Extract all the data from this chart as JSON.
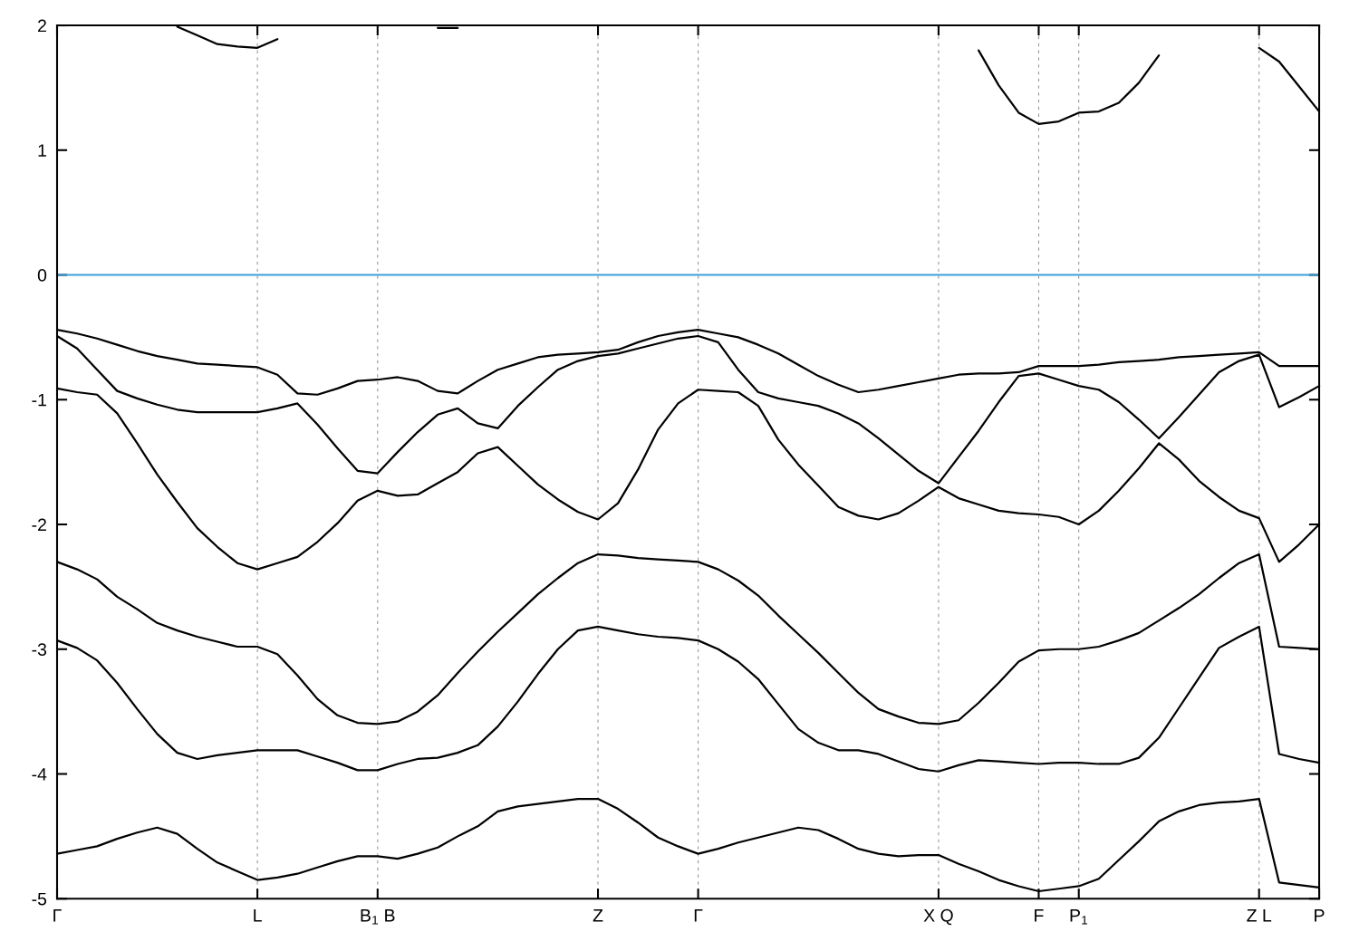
{
  "chart_data": {
    "type": "line",
    "categories": [
      "Γ",
      null,
      null,
      null,
      null,
      null,
      null,
      null,
      null,
      null,
      "L",
      null,
      null,
      null,
      null,
      null,
      "B$_{1}$ B",
      null,
      null,
      null,
      null,
      null,
      null,
      null,
      null,
      null,
      null,
      "Z",
      null,
      null,
      null,
      null,
      "Γ",
      null,
      null,
      null,
      null,
      null,
      null,
      null,
      null,
      null,
      null,
      null,
      "X Q",
      null,
      null,
      null,
      null,
      "F",
      null,
      "P$_{1}$",
      null,
      null,
      null,
      null,
      null,
      null,
      null,
      null,
      "Z L",
      null,
      null,
      "P"
    ],
    "ylim": [
      -5,
      2
    ],
    "yticks": [
      -5,
      -4,
      -3,
      -2,
      -1,
      0,
      1,
      2
    ],
    "grid": "x",
    "marker": "none",
    "line_style": "solid",
    "ref_lines": [
      {
        "axis": "y",
        "value": 0,
        "color": "#3d9fd8",
        "line_style": "solid"
      }
    ],
    "series": [
      {
        "color": "#000000",
        "values": [
          -4.64,
          -4.61,
          -4.58,
          -4.52,
          -4.47,
          -4.43,
          -4.48,
          -4.6,
          -4.71,
          -4.78,
          -4.85,
          -4.83,
          -4.8,
          -4.75,
          -4.7,
          -4.66,
          -4.66,
          -4.68,
          -4.64,
          -4.59,
          -4.5,
          -4.42,
          -4.3,
          -4.26,
          -4.24,
          -4.22,
          -4.2,
          -4.2,
          -4.28,
          -4.39,
          -4.51,
          -4.58,
          -4.64,
          -4.6,
          -4.55,
          -4.51,
          -4.47,
          -4.43,
          -4.45,
          -4.52,
          -4.6,
          -4.64,
          -4.66,
          -4.65,
          -4.65,
          -4.72,
          -4.78,
          -4.85,
          -4.9,
          -4.94,
          -4.92,
          -4.9,
          -4.84,
          -4.69,
          -4.54,
          -4.38,
          -4.3,
          -4.25,
          -4.23,
          -4.22,
          -4.2,
          -4.87,
          -4.89,
          -4.91
        ]
      },
      {
        "color": "#000000",
        "values": [
          -2.93,
          -2.99,
          -3.09,
          -3.27,
          -3.48,
          -3.68,
          -3.83,
          -3.88,
          -3.85,
          -3.83,
          -3.81,
          -3.81,
          -3.81,
          -3.86,
          -3.91,
          -3.97,
          -3.97,
          -3.92,
          -3.88,
          -3.87,
          -3.83,
          -3.77,
          -3.62,
          -3.42,
          -3.2,
          -3.0,
          -2.85,
          -2.82,
          -2.85,
          -2.88,
          -2.9,
          -2.91,
          -2.93,
          -3.0,
          -3.1,
          -3.24,
          -3.44,
          -3.64,
          -3.75,
          -3.81,
          -3.81,
          -3.84,
          -3.9,
          -3.96,
          -3.98,
          -3.93,
          -3.89,
          -3.9,
          -3.91,
          -3.92,
          -3.91,
          -3.91,
          -3.92,
          -3.92,
          -3.87,
          -3.71,
          -3.47,
          -3.23,
          -2.99,
          -2.9,
          -2.82,
          -3.84,
          -3.88,
          -3.91
        ]
      },
      {
        "color": "#000000",
        "values": [
          -2.3,
          -2.36,
          -2.44,
          -2.58,
          -2.68,
          -2.79,
          -2.85,
          -2.9,
          -2.94,
          -2.98,
          -2.98,
          -3.04,
          -3.21,
          -3.4,
          -3.53,
          -3.59,
          -3.6,
          -3.58,
          -3.5,
          -3.37,
          -3.19,
          -3.02,
          -2.86,
          -2.71,
          -2.56,
          -2.43,
          -2.31,
          -2.24,
          -2.25,
          -2.27,
          -2.28,
          -2.29,
          -2.3,
          -2.36,
          -2.45,
          -2.57,
          -2.73,
          -2.88,
          -3.03,
          -3.19,
          -3.35,
          -3.48,
          -3.54,
          -3.59,
          -3.6,
          -3.57,
          -3.43,
          -3.27,
          -3.1,
          -3.01,
          -3.0,
          -3.0,
          -2.98,
          -2.93,
          -2.87,
          -2.77,
          -2.67,
          -2.56,
          -2.43,
          -2.31,
          -2.24,
          -2.98,
          -2.99,
          -3.0
        ]
      },
      {
        "color": "#000000",
        "values": [
          -0.91,
          -0.94,
          -0.96,
          -1.11,
          -1.35,
          -1.6,
          -1.82,
          -2.03,
          -2.18,
          -2.31,
          -2.36,
          -2.31,
          -2.26,
          -2.14,
          -1.99,
          -1.81,
          -1.73,
          -1.77,
          -1.76,
          -1.67,
          -1.58,
          -1.43,
          -1.38,
          -1.53,
          -1.68,
          -1.8,
          -1.9,
          -1.96,
          -1.83,
          -1.56,
          -1.24,
          -1.03,
          -0.92,
          -0.93,
          -0.94,
          -1.05,
          -1.32,
          -1.52,
          -1.69,
          -1.86,
          -1.93,
          -1.96,
          -1.91,
          -1.81,
          -1.7,
          -1.79,
          -1.84,
          -1.89,
          -1.91,
          -1.92,
          -1.94,
          -2.0,
          -1.89,
          -1.73,
          -1.55,
          -1.35,
          -1.48,
          -1.65,
          -1.78,
          -1.89,
          -1.95,
          -2.3,
          -2.16,
          -2.0
        ]
      },
      {
        "color": "#000000",
        "values": [
          -0.49,
          -0.59,
          -0.76,
          -0.93,
          -0.99,
          -1.04,
          -1.08,
          -1.1,
          -1.1,
          -1.1,
          -1.1,
          -1.07,
          -1.03,
          -1.2,
          -1.39,
          -1.57,
          -1.59,
          -1.42,
          -1.26,
          -1.12,
          -1.07,
          -1.19,
          -1.23,
          -1.05,
          -0.9,
          -0.76,
          -0.69,
          -0.65,
          -0.63,
          -0.59,
          -0.55,
          -0.51,
          -0.49,
          -0.54,
          -0.76,
          -0.94,
          -0.99,
          -1.02,
          -1.05,
          -1.11,
          -1.19,
          -1.31,
          -1.44,
          -1.57,
          -1.67,
          -1.46,
          -1.25,
          -1.02,
          -0.81,
          -0.79,
          -0.84,
          -0.89,
          -0.92,
          -1.02,
          -1.16,
          -1.31,
          -1.14,
          -0.96,
          -0.78,
          -0.69,
          -0.64,
          -1.06,
          -0.98,
          -0.89
        ]
      },
      {
        "color": "#000000",
        "values": [
          -0.44,
          -0.47,
          -0.51,
          -0.56,
          -0.61,
          -0.65,
          -0.68,
          -0.71,
          -0.72,
          -0.73,
          -0.74,
          -0.8,
          -0.95,
          -0.96,
          -0.91,
          -0.85,
          -0.84,
          -0.82,
          -0.85,
          -0.93,
          -0.95,
          -0.85,
          -0.76,
          -0.71,
          -0.66,
          -0.64,
          -0.63,
          -0.62,
          -0.6,
          -0.54,
          -0.49,
          -0.46,
          -0.44,
          -0.47,
          -0.5,
          -0.56,
          -0.63,
          -0.72,
          -0.81,
          -0.88,
          -0.94,
          -0.92,
          -0.89,
          -0.86,
          -0.83,
          -0.8,
          -0.79,
          -0.79,
          -0.78,
          -0.73,
          -0.73,
          -0.73,
          -0.72,
          -0.7,
          -0.69,
          -0.68,
          -0.66,
          -0.65,
          -0.64,
          -0.63,
          -0.62,
          -0.73,
          -0.73,
          -0.73
        ]
      },
      {
        "color": "#000000",
        "values": [
          null,
          null,
          null,
          null,
          null,
          null,
          1.99,
          1.92,
          1.85,
          1.83,
          1.82,
          1.89,
          null,
          null,
          null,
          null,
          null,
          null,
          null,
          1.98,
          1.98,
          null,
          null,
          null,
          null,
          null,
          null,
          null,
          null,
          null,
          null,
          null,
          null,
          null,
          null,
          null,
          null,
          null,
          null,
          null,
          null,
          null,
          null,
          null,
          null,
          null,
          1.8,
          1.52,
          1.3,
          1.21,
          1.23,
          1.3,
          1.31,
          1.38,
          1.54,
          1.76,
          null,
          null,
          null,
          null,
          1.82,
          1.71,
          1.51,
          1.31
        ]
      }
    ]
  }
}
